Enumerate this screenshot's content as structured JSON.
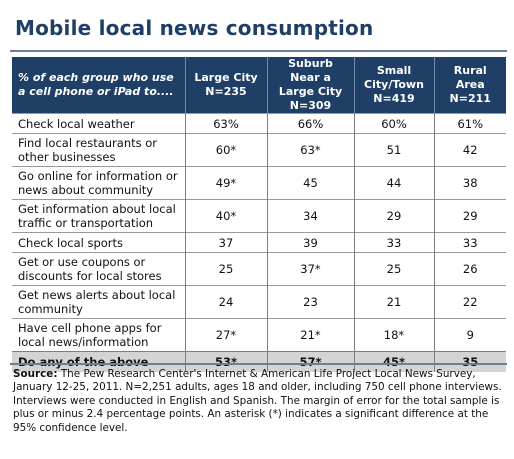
{
  "title": "Mobile local news consumption",
  "table": {
    "header": {
      "description": "% of each group who use a cell phone or iPad to....",
      "columns": [
        {
          "line1": "Large City",
          "line2": "N=235"
        },
        {
          "line1": "Suburb Near a Large City",
          "line2": "N=309"
        },
        {
          "line1": "Small City/Town",
          "line2": "N=419"
        },
        {
          "line1": "Rural Area",
          "line2": "N=211"
        }
      ]
    },
    "rows": [
      {
        "label": "Check local weather",
        "values": [
          "63%",
          "66%",
          "60%",
          "61%"
        ]
      },
      {
        "label": "Find local restaurants or other businesses",
        "values": [
          "60*",
          "63*",
          "51",
          "42"
        ]
      },
      {
        "label": "Go online for information or news about community",
        "values": [
          "49*",
          "45",
          "44",
          "38"
        ]
      },
      {
        "label": "Get information about local traffic or transportation",
        "values": [
          "40*",
          "34",
          "29",
          "29"
        ]
      },
      {
        "label": "Check local sports",
        "values": [
          "37",
          "39",
          "33",
          "33"
        ]
      },
      {
        "label": "Get or use coupons or discounts for local stores",
        "values": [
          "25",
          "37*",
          "25",
          "26"
        ]
      },
      {
        "label": "Get news alerts about local community",
        "values": [
          "24",
          "23",
          "21",
          "22"
        ]
      },
      {
        "label": "Have cell phone apps for local news/information",
        "values": [
          "27*",
          "21*",
          "18*",
          "9"
        ]
      }
    ],
    "total": {
      "label": "Do any of the above",
      "values": [
        "53*",
        "57*",
        "45*",
        "35"
      ]
    }
  },
  "source": {
    "label": "Source:",
    "text": " The Pew Research Center's Internet & American Life Project Local News Survey, January 12-25, 2011. N=2,251 adults, ages 18 and older, including 750 cell phone interviews. Interviews were conducted in English and Spanish. The margin of error for the total sample is plus or minus 2.4 percentage points.  An asterisk (*) indicates a significant difference at the 95% confidence level."
  }
}
